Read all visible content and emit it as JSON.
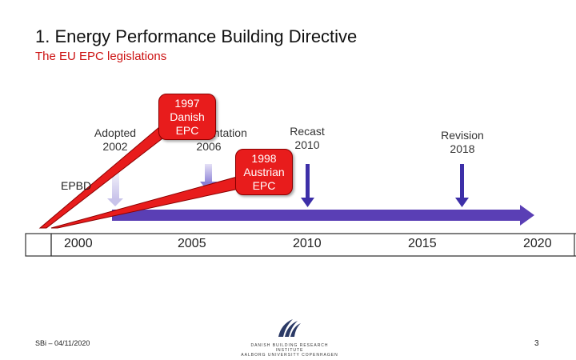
{
  "slide": {
    "title": "1. Energy Performance Building Directive",
    "subtitle": "The EU EPC legislations",
    "footer_date": "SBi – 04/11/2020",
    "page_number": "3",
    "logo_text": "DANISH BUILDING RESEARCH INSTITUTE",
    "logo_subtext": "AALBORG UNIVERSITY COPENHAGEN"
  },
  "timeline": {
    "years": [
      "2000",
      "2005",
      "2010",
      "2015",
      "2020"
    ],
    "events": [
      {
        "label": "Adopted",
        "year": "2002"
      },
      {
        "label": "Implementation",
        "year": "2006"
      },
      {
        "label": "Recast",
        "year": "2010"
      },
      {
        "label": "Revision",
        "year": "2018"
      }
    ],
    "epbd_label": "EPBD",
    "callouts": [
      {
        "year": "1997",
        "text": "Danish EPC"
      },
      {
        "year": "1998",
        "text": "Austrian EPC"
      }
    ]
  },
  "colors": {
    "timeline_arrow": "#5a3fb5",
    "event_arrow": "#5a3fb5",
    "faded_arrow": "#c8c3ea",
    "callout_fill": "#e81c1c",
    "subtitle": "#cc1111"
  }
}
